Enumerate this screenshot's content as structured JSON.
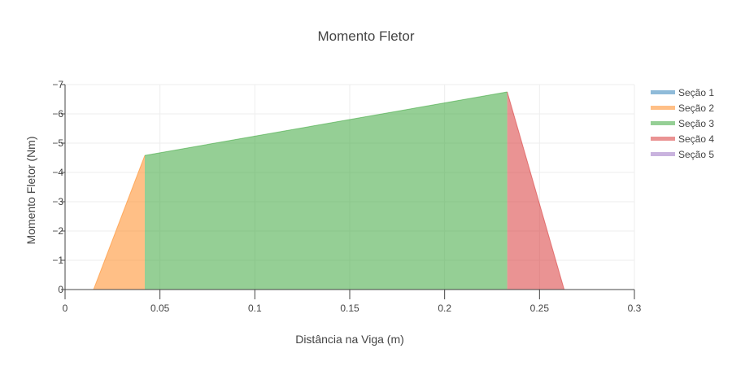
{
  "chart_data": {
    "type": "area",
    "title": "Momento Fletor",
    "xlabel": "Distância na Viga (m)",
    "ylabel": "Momento Fletor (Nm)",
    "xlim": [
      0,
      0.3
    ],
    "ylim": [
      0,
      -7
    ],
    "y_reversed": true,
    "grid": true,
    "legend_position": "top-right",
    "x_ticks": [
      0,
      0.05,
      0.1,
      0.15,
      0.2,
      0.25,
      0.3
    ],
    "x_tick_labels": [
      "0",
      "0.05",
      "0.1",
      "0.15",
      "0.2",
      "0.25",
      "0.3"
    ],
    "y_ticks": [
      0,
      -1,
      -2,
      -3,
      -4,
      -5,
      -6,
      -7
    ],
    "y_tick_labels": [
      "0",
      "−1",
      "−2",
      "−3",
      "−4",
      "−5",
      "−6",
      "−7"
    ],
    "series": [
      {
        "name": "Seção 1",
        "color": "#1f77b4",
        "x": [
          0,
          0.015
        ],
        "y": [
          0,
          0
        ]
      },
      {
        "name": "Seção 2",
        "color": "#ff7f0e",
        "x": [
          0.015,
          0.042
        ],
        "y": [
          0,
          -4.58
        ]
      },
      {
        "name": "Seção 3",
        "color": "#2ca02c",
        "x": [
          0.042,
          0.233
        ],
        "y": [
          -4.58,
          -6.75
        ]
      },
      {
        "name": "Seção 4",
        "color": "#d62728",
        "x": [
          0.233,
          0.263
        ],
        "y": [
          -6.75,
          0
        ]
      },
      {
        "name": "Seção 5",
        "color": "#9467bd",
        "x": [
          0.263,
          0.3
        ],
        "y": [
          0,
          0
        ]
      }
    ]
  }
}
